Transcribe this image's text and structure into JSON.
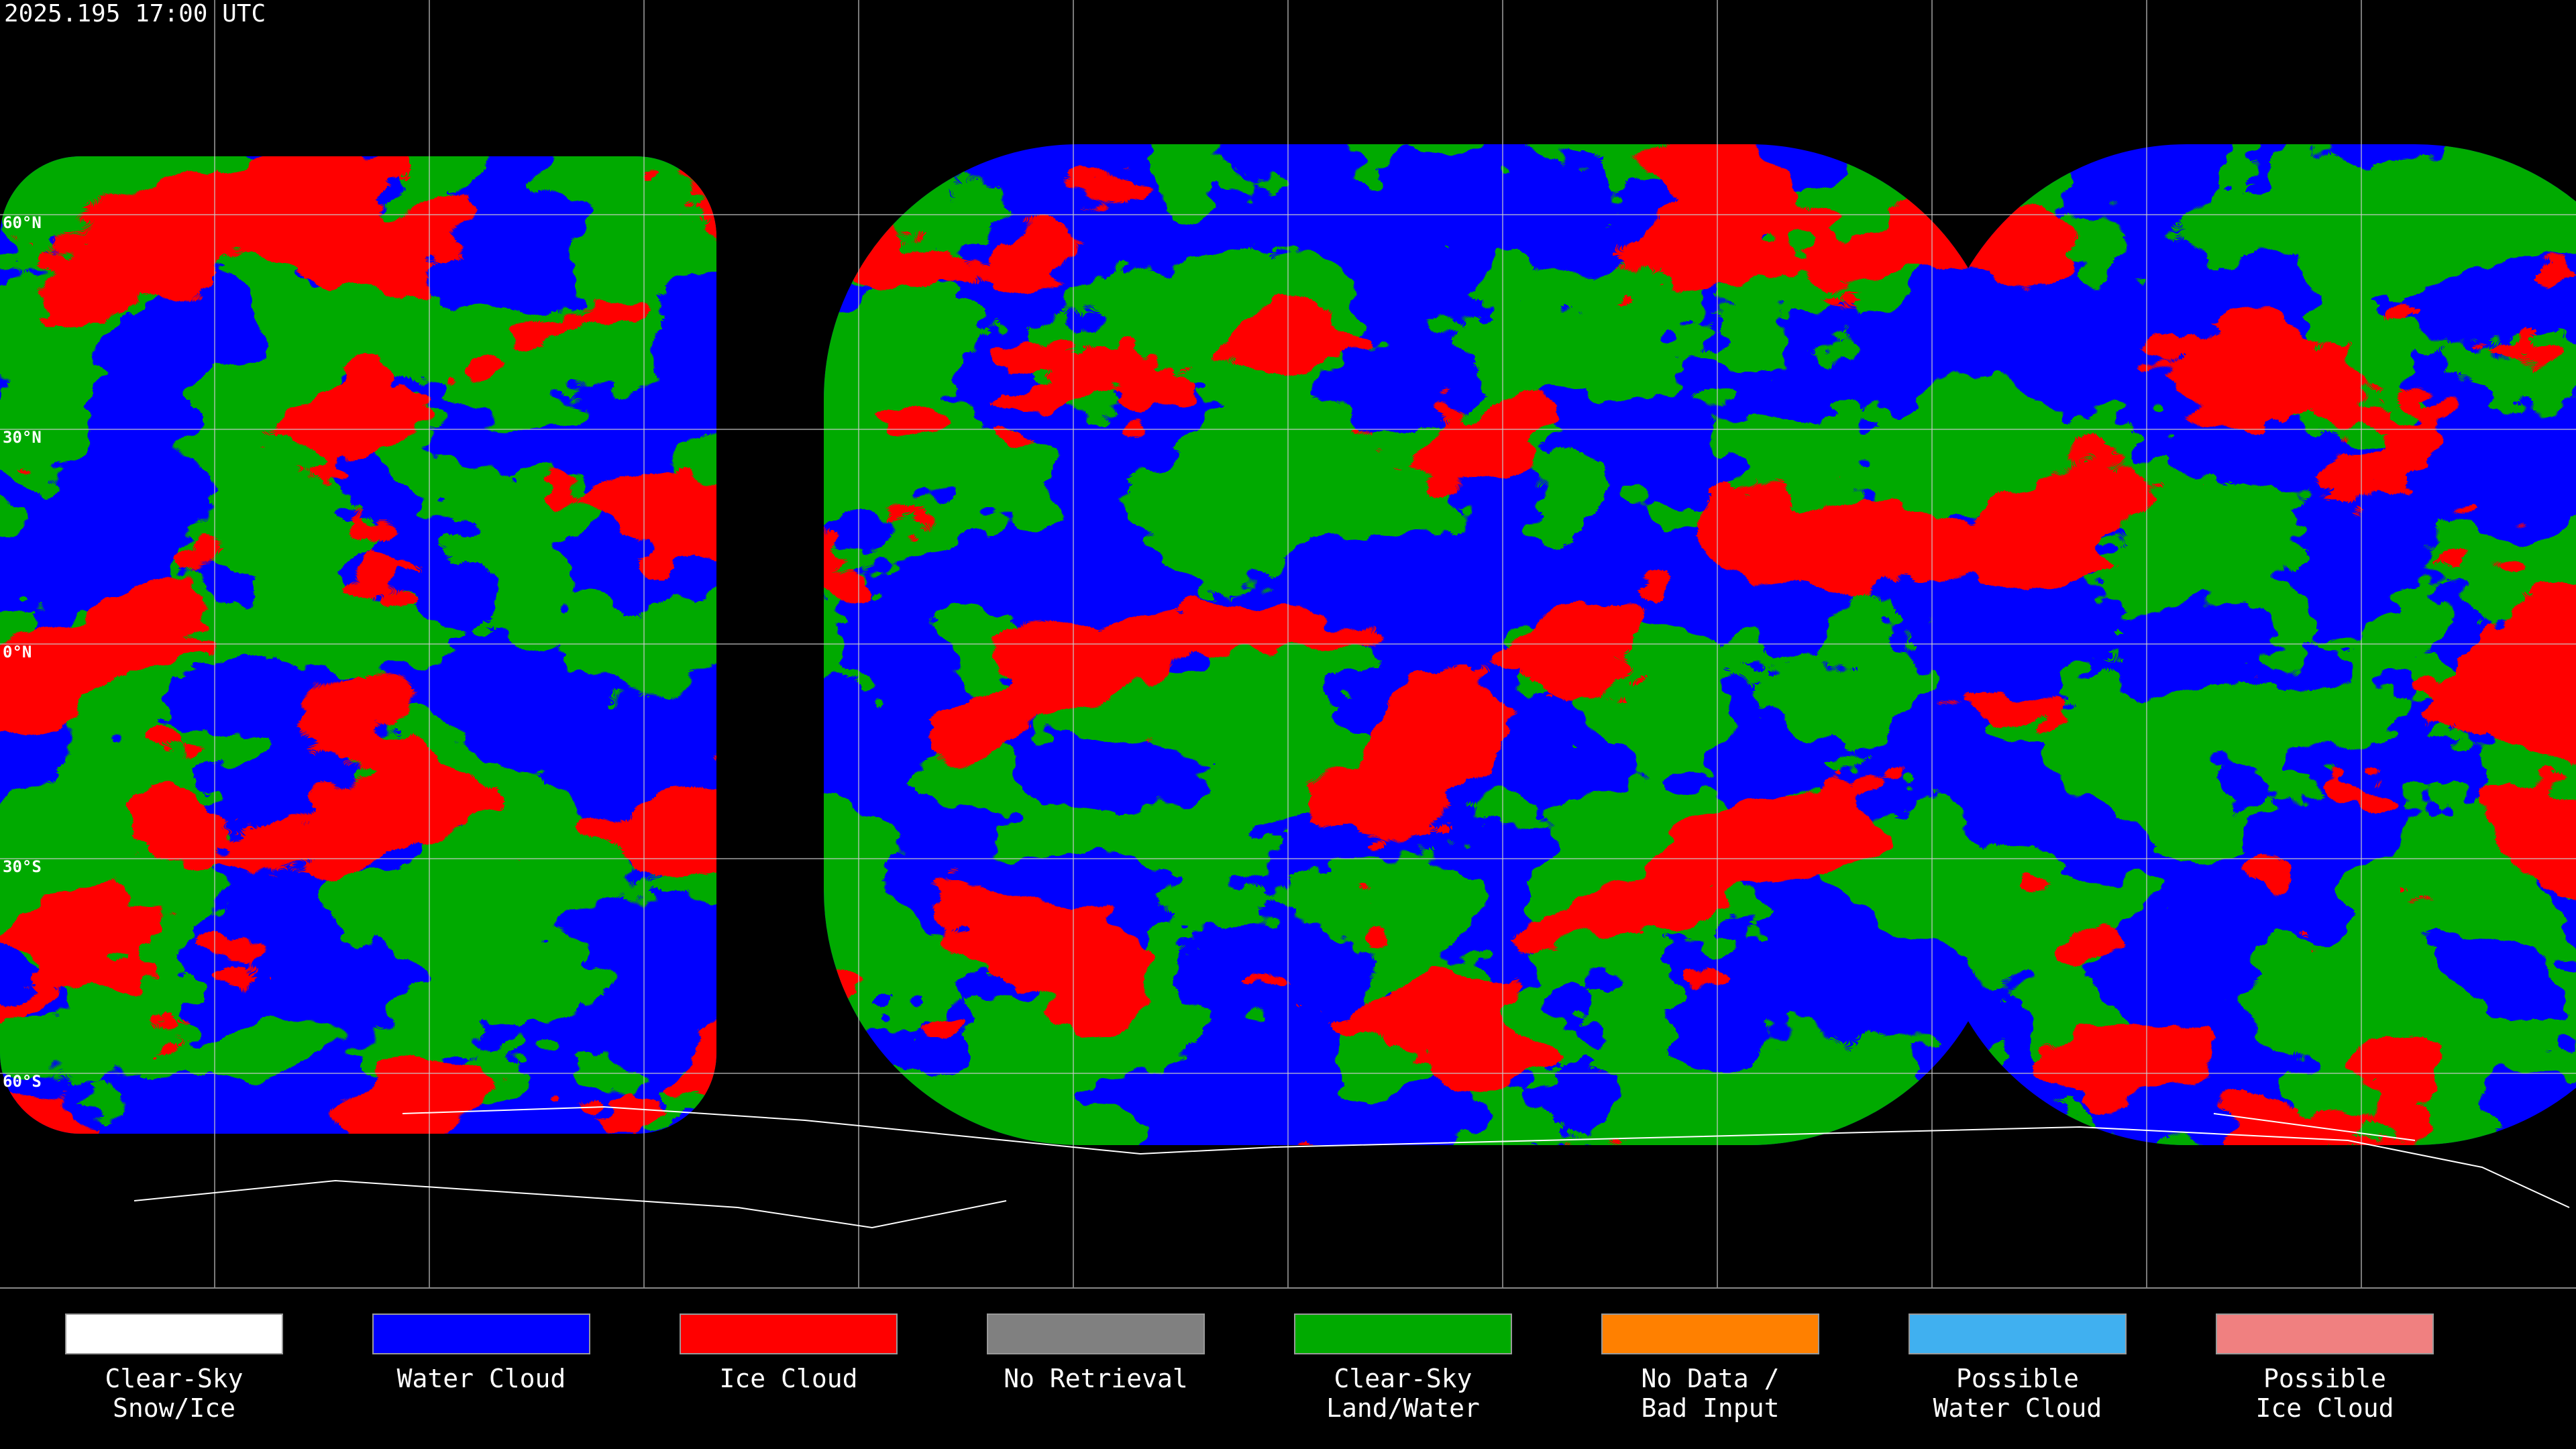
{
  "header": {
    "timestamp": "2025.195 17:00 UTC"
  },
  "map": {
    "latitude_labels": [
      "60°N",
      "30°N",
      "0°N",
      "30°S",
      "60°S"
    ]
  },
  "legend": {
    "items": [
      {
        "lines": [
          "Clear-Sky",
          "Snow/Ice"
        ],
        "color": "#ffffff"
      },
      {
        "lines": [
          "Water Cloud"
        ],
        "color": "#0000ff"
      },
      {
        "lines": [
          "Ice Cloud"
        ],
        "color": "#ff0000"
      },
      {
        "lines": [
          "No Retrieval"
        ],
        "color": "#808080"
      },
      {
        "lines": [
          "Clear-Sky",
          "Land/Water"
        ],
        "color": "#00aa00"
      },
      {
        "lines": [
          "No Data /",
          "Bad Input"
        ],
        "color": "#ff8000"
      },
      {
        "lines": [
          "Possible",
          "Water Cloud"
        ],
        "color": "#40b0f0"
      },
      {
        "lines": [
          "Possible",
          "Ice Cloud"
        ],
        "color": "#f08080"
      }
    ]
  }
}
